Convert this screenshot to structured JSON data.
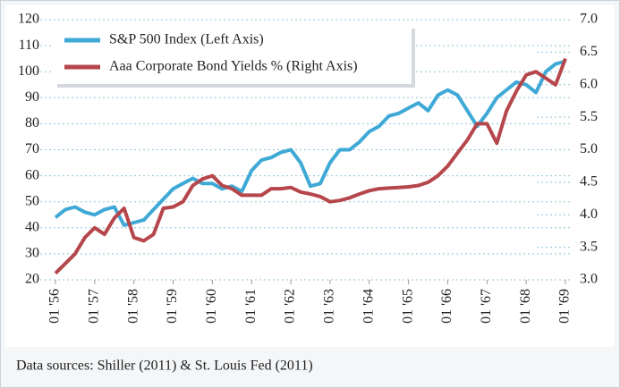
{
  "chart_data": {
    "type": "line",
    "x": [
      "1956-01",
      "1956-04",
      "1956-07",
      "1956-10",
      "1957-01",
      "1957-04",
      "1957-07",
      "1957-10",
      "1958-01",
      "1958-04",
      "1958-07",
      "1958-10",
      "1959-01",
      "1959-04",
      "1959-07",
      "1959-10",
      "1960-01",
      "1960-04",
      "1960-07",
      "1960-10",
      "1961-01",
      "1961-04",
      "1961-07",
      "1961-10",
      "1962-01",
      "1962-04",
      "1962-07",
      "1962-10",
      "1963-01",
      "1963-04",
      "1963-07",
      "1963-10",
      "1964-01",
      "1964-04",
      "1964-07",
      "1964-10",
      "1965-01",
      "1965-04",
      "1965-07",
      "1965-10",
      "1966-01",
      "1966-04",
      "1966-07",
      "1966-10",
      "1967-01",
      "1967-04",
      "1967-07",
      "1967-10",
      "1968-01",
      "1968-04",
      "1968-07",
      "1968-10",
      "1969-01"
    ],
    "series": [
      {
        "name": "S&P 500 Index (Left Axis)",
        "color": "#3fa9d6",
        "axis": "y",
        "values": [
          44,
          47,
          48,
          46,
          45,
          47,
          48,
          41,
          42,
          43,
          47,
          51,
          55,
          57,
          59,
          57,
          57,
          55,
          56,
          54,
          62,
          66,
          67,
          69,
          70,
          65,
          56,
          57,
          65,
          70,
          70,
          73,
          77,
          79,
          83,
          84,
          86,
          88,
          85,
          91,
          93,
          91,
          85,
          79,
          84,
          90,
          93,
          96,
          95,
          92,
          100,
          103,
          104
        ]
      },
      {
        "name": "Aaa Corporate Bond Yields % (Right Axis)",
        "color": "#b5464b",
        "axis": "y2",
        "values": [
          3.1,
          3.25,
          3.4,
          3.65,
          3.8,
          3.7,
          3.95,
          4.1,
          3.65,
          3.6,
          3.7,
          4.1,
          4.12,
          4.2,
          4.45,
          4.55,
          4.6,
          4.45,
          4.4,
          4.3,
          4.3,
          4.3,
          4.4,
          4.4,
          4.42,
          4.35,
          4.32,
          4.28,
          4.2,
          4.22,
          4.26,
          4.32,
          4.37,
          4.4,
          4.41,
          4.42,
          4.43,
          4.45,
          4.5,
          4.6,
          4.75,
          4.95,
          5.15,
          5.4,
          5.4,
          5.1,
          5.6,
          5.9,
          6.15,
          6.2,
          6.1,
          6.0,
          6.4
        ]
      }
    ],
    "xlim": [
      "1956-01",
      "1969-01"
    ],
    "xticks": [
      {
        "value": "1956-01",
        "label": "01 '56"
      },
      {
        "value": "1957-01",
        "label": "01 '57"
      },
      {
        "value": "1958-01",
        "label": "01 '58"
      },
      {
        "value": "1959-01",
        "label": "01 '59"
      },
      {
        "value": "1960-01",
        "label": "01 '60"
      },
      {
        "value": "1961-01",
        "label": "01 '61"
      },
      {
        "value": "1962-01",
        "label": "01 '62"
      },
      {
        "value": "1963-01",
        "label": "01 '63"
      },
      {
        "value": "1964-01",
        "label": "01 '64"
      },
      {
        "value": "1965-01",
        "label": "01 '65"
      },
      {
        "value": "1966-01",
        "label": "01 '66"
      },
      {
        "value": "1967-01",
        "label": "01 '67"
      },
      {
        "value": "1968-01",
        "label": "01 '68"
      },
      {
        "value": "1969-01",
        "label": "01 '69"
      }
    ],
    "ylim": [
      20,
      120
    ],
    "yticks": [
      20,
      30,
      40,
      50,
      60,
      70,
      80,
      90,
      100,
      110,
      120
    ],
    "y2lim": [
      3,
      7
    ],
    "y2ticks": [
      {
        "value": 3,
        "label": "3.0"
      },
      3.5,
      {
        "value": 4,
        "label": "4.0"
      },
      4.5,
      {
        "value": 5,
        "label": "5.0"
      },
      5.5,
      {
        "value": 6,
        "label": "6.0"
      },
      6.5,
      {
        "value": 7,
        "label": "7.0"
      }
    ],
    "grid": true,
    "legend": "upper left",
    "note": "Data sources: Shiller (2011) & St. Louis Fed (2011)"
  }
}
